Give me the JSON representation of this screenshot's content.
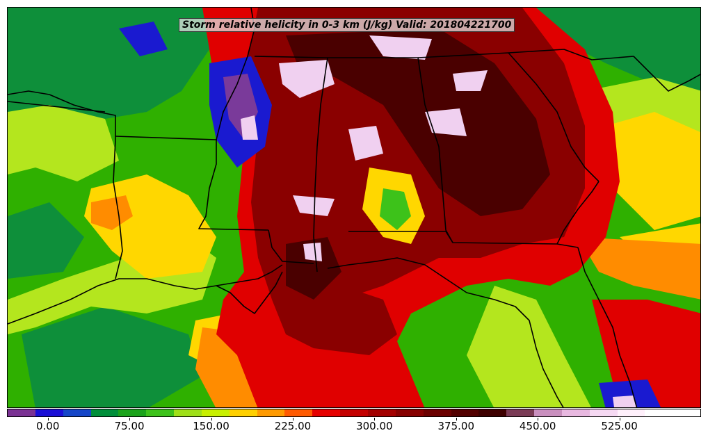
{
  "title": "Storm relative helicity in 0-3 km (J/kg) Valid: 201804221700",
  "colorbar": {
    "colors": [
      "#7b3294",
      "#1a0fd6",
      "#1546c8",
      "#008f3a",
      "#1aa31a",
      "#3dc21a",
      "#9fe018",
      "#c8f000",
      "#ffd000",
      "#ff9a00",
      "#ff5a00",
      "#e60000",
      "#c40000",
      "#a30000",
      "#860000",
      "#6b0000",
      "#520000",
      "#3d0000",
      "#7a3a55",
      "#c98fbe",
      "#e8b8e0",
      "#f5d8f2",
      "#fff0fb",
      "#ffffff",
      "#ffffff"
    ],
    "ticks": [
      {
        "value": 0,
        "label": "0.00"
      },
      {
        "value": 75,
        "label": "75.00"
      },
      {
        "value": 150,
        "label": "150.00"
      },
      {
        "value": 225,
        "label": "225.00"
      },
      {
        "value": 300,
        "label": "300.00"
      },
      {
        "value": 375,
        "label": "375.00"
      },
      {
        "value": 450,
        "label": "450.00"
      },
      {
        "value": 525,
        "label": "525.00"
      }
    ],
    "min": -37.5,
    "max": 600
  },
  "map": {
    "colors": {
      "green": "#0e8f3a",
      "mid_green": "#2fb000",
      "yellow_green": "#b4e61e",
      "yellow": "#ffd700",
      "orange": "#ff8c00",
      "red": "#e00000",
      "dark_red": "#8a0000",
      "maroon": "#4a0000",
      "pink": "#f0d0f0",
      "blue": "#1a1ad0",
      "purple": "#7a3a9a"
    }
  }
}
